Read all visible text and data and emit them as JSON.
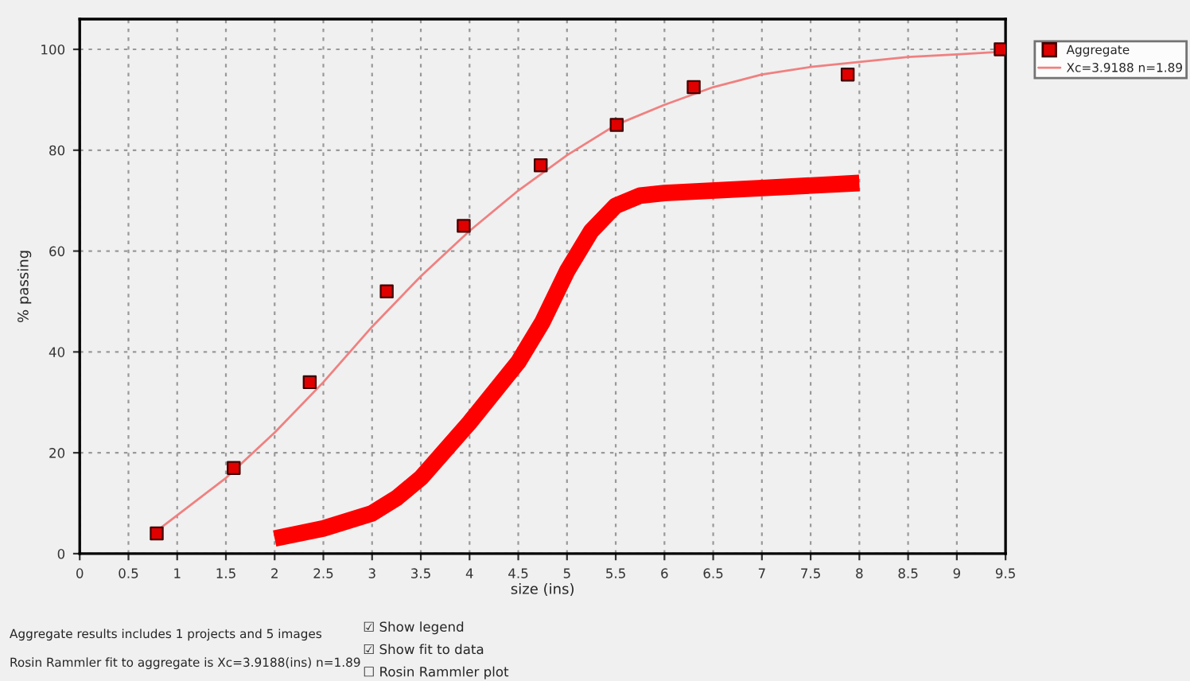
{
  "chart_data": {
    "type": "scatter",
    "xlabel": "size (ins)",
    "ylabel": "% passing",
    "xlim": [
      0,
      9.5
    ],
    "xticks": [
      0,
      0.5,
      1,
      1.5,
      2,
      2.5,
      3,
      3.5,
      4,
      4.5,
      5,
      5.5,
      6,
      6.5,
      7,
      7.5,
      8,
      8.5,
      9,
      9.5
    ],
    "ylim": [
      0,
      106
    ],
    "yticks": [
      0,
      20,
      40,
      60,
      80,
      100
    ],
    "grid": true,
    "legend": "top right",
    "series": [
      {
        "name": "Aggregate",
        "marker": "square",
        "color": "#e00000",
        "x": [
          0.79,
          1.58,
          2.36,
          3.15,
          3.94,
          4.73,
          5.51,
          6.3,
          7.88,
          9.45
        ],
        "values": [
          4,
          17,
          34,
          52,
          65,
          77,
          85,
          92.5,
          95,
          100
        ]
      },
      {
        "name": "Xc=3.9188 n=1.89",
        "type": "line",
        "color": "#f08080",
        "x": [
          0.79,
          1.5,
          2,
          2.5,
          3,
          3.5,
          4,
          4.5,
          5,
          5.5,
          6,
          6.5,
          7,
          7.5,
          8,
          8.5,
          9,
          9.45
        ],
        "values": [
          4.5,
          15,
          24,
          34,
          45,
          55,
          64,
          72,
          79,
          85,
          89,
          92.5,
          95,
          96.5,
          97.5,
          98.5,
          99,
          99.5
        ]
      },
      {
        "type": "line",
        "color": "#ff0000",
        "x": [
          2,
          2.5,
          3,
          3.25,
          3.5,
          4,
          4.5,
          4.75,
          5,
          5.25,
          5.5,
          5.75,
          6,
          7,
          8
        ],
        "values": [
          3,
          5,
          8,
          11,
          15,
          26,
          38,
          46,
          56,
          64,
          69,
          71,
          71.5,
          72.5,
          73.5
        ]
      }
    ],
    "annotations": [
      "Aggregate results includes 1 projects and 5 images",
      "Rosin Rammler fit to aggregate is Xc=3.9188(ins) n=1.89",
      "☑ Show legend",
      "☑ Show fit to data",
      "☐ Rosin Rammler plot"
    ]
  }
}
